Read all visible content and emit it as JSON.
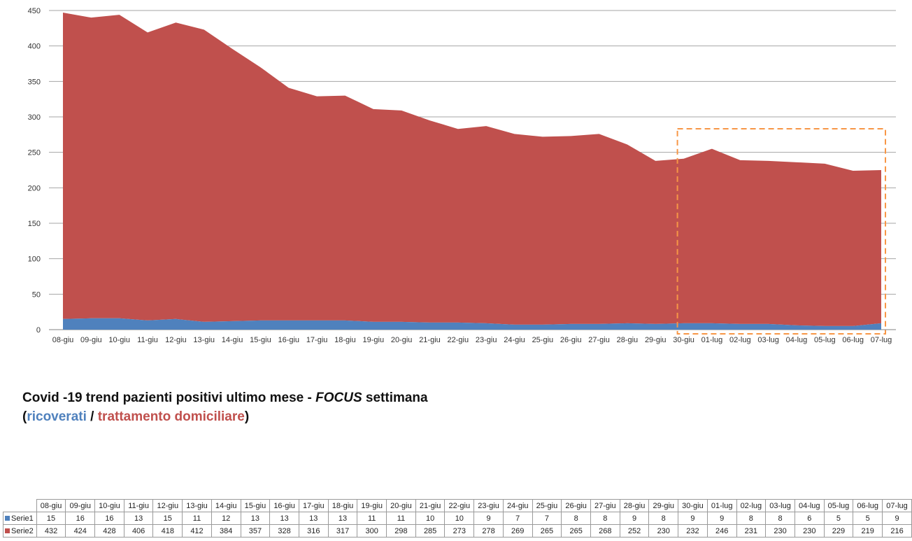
{
  "chart_data": {
    "type": "area",
    "stacked": true,
    "categories": [
      "08-giu",
      "09-giu",
      "10-giu",
      "11-giu",
      "12-giu",
      "13-giu",
      "14-giu",
      "15-giu",
      "16-giu",
      "17-giu",
      "18-giu",
      "19-giu",
      "20-giu",
      "21-giu",
      "22-giu",
      "23-giu",
      "24-giu",
      "25-giu",
      "26-giu",
      "27-giu",
      "28-giu",
      "29-giu",
      "30-giu",
      "01-lug",
      "02-lug",
      "03-lug",
      "04-lug",
      "05-lug",
      "06-lug",
      "07-lug"
    ],
    "series": [
      {
        "name": "Serie1",
        "color": "#4f81bd",
        "values": [
          15,
          16,
          16,
          13,
          15,
          11,
          12,
          13,
          13,
          13,
          13,
          11,
          11,
          10,
          10,
          9,
          7,
          7,
          8,
          8,
          9,
          8,
          9,
          9,
          8,
          8,
          6,
          5,
          5,
          9
        ]
      },
      {
        "name": "Serie2",
        "color": "#c0504d",
        "values": [
          432,
          424,
          428,
          406,
          418,
          412,
          384,
          357,
          328,
          316,
          317,
          300,
          298,
          285,
          273,
          278,
          269,
          265,
          265,
          268,
          252,
          230,
          232,
          246,
          231,
          230,
          230,
          229,
          219,
          216
        ]
      }
    ],
    "ylim": [
      0,
      450
    ],
    "yticks": [
      0,
      50,
      100,
      150,
      200,
      250,
      300,
      350,
      400,
      450
    ],
    "grid": true,
    "highlight": {
      "from": "30-giu",
      "to": "07-lug",
      "color": "#f79646"
    }
  },
  "caption": {
    "line1": "Covid -19 trend pazienti positivi ultimo mese - ",
    "focus": "FOCUS",
    "line1_end": " settimana",
    "open": "(",
    "ricoverati": "ricoverati",
    "slash": " / ",
    "trattamento": "trattamento domiciliare",
    "close": ")"
  }
}
